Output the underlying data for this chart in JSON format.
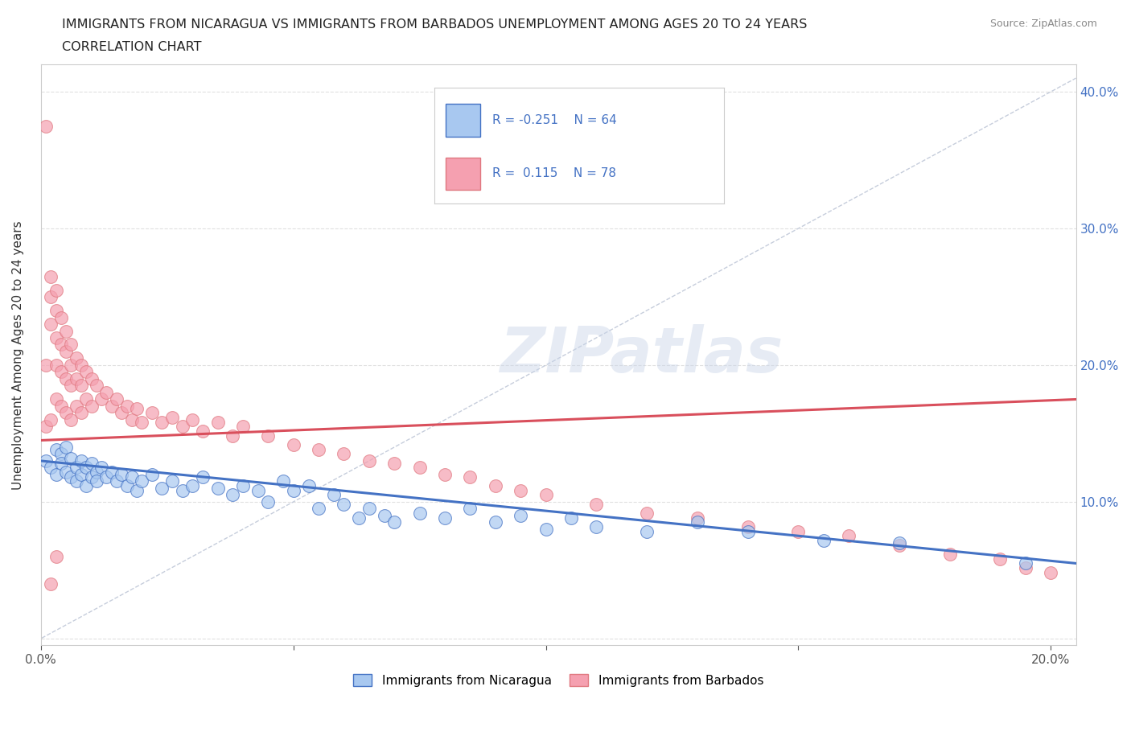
{
  "title_line1": "IMMIGRANTS FROM NICARAGUA VS IMMIGRANTS FROM BARBADOS UNEMPLOYMENT AMONG AGES 20 TO 24 YEARS",
  "title_line2": "CORRELATION CHART",
  "source_text": "Source: ZipAtlas.com",
  "ylabel": "Unemployment Among Ages 20 to 24 years",
  "xlim": [
    0.0,
    0.205
  ],
  "ylim": [
    -0.005,
    0.42
  ],
  "color_nicaragua": "#a8c8f0",
  "color_barbados": "#f5a0b0",
  "color_trend_nicaragua": "#4472c4",
  "color_trend_barbados": "#d94f5c",
  "color_diagonal": "#c0c8d8",
  "legend_label1": "Immigrants from Nicaragua",
  "legend_label2": "Immigrants from Barbados",
  "watermark": "ZIPatlas",
  "nicaragua_x": [
    0.001,
    0.002,
    0.003,
    0.003,
    0.004,
    0.004,
    0.005,
    0.005,
    0.006,
    0.006,
    0.007,
    0.007,
    0.008,
    0.008,
    0.009,
    0.009,
    0.01,
    0.01,
    0.011,
    0.011,
    0.012,
    0.013,
    0.014,
    0.015,
    0.016,
    0.017,
    0.018,
    0.019,
    0.02,
    0.022,
    0.024,
    0.026,
    0.028,
    0.03,
    0.032,
    0.035,
    0.038,
    0.04,
    0.043,
    0.045,
    0.048,
    0.05,
    0.053,
    0.055,
    0.058,
    0.06,
    0.063,
    0.065,
    0.068,
    0.07,
    0.075,
    0.08,
    0.085,
    0.09,
    0.095,
    0.1,
    0.105,
    0.11,
    0.12,
    0.13,
    0.14,
    0.155,
    0.17,
    0.195
  ],
  "nicaragua_y": [
    0.13,
    0.125,
    0.138,
    0.12,
    0.135,
    0.128,
    0.14,
    0.122,
    0.132,
    0.118,
    0.125,
    0.115,
    0.13,
    0.12,
    0.125,
    0.112,
    0.118,
    0.128,
    0.122,
    0.115,
    0.125,
    0.118,
    0.122,
    0.115,
    0.12,
    0.112,
    0.118,
    0.108,
    0.115,
    0.12,
    0.11,
    0.115,
    0.108,
    0.112,
    0.118,
    0.11,
    0.105,
    0.112,
    0.108,
    0.1,
    0.115,
    0.108,
    0.112,
    0.095,
    0.105,
    0.098,
    0.088,
    0.095,
    0.09,
    0.085,
    0.092,
    0.088,
    0.095,
    0.085,
    0.09,
    0.08,
    0.088,
    0.082,
    0.078,
    0.085,
    0.078,
    0.072,
    0.07,
    0.055
  ],
  "barbados_x": [
    0.001,
    0.001,
    0.001,
    0.002,
    0.002,
    0.002,
    0.002,
    0.003,
    0.003,
    0.003,
    0.003,
    0.003,
    0.004,
    0.004,
    0.004,
    0.004,
    0.005,
    0.005,
    0.005,
    0.005,
    0.006,
    0.006,
    0.006,
    0.006,
    0.007,
    0.007,
    0.007,
    0.008,
    0.008,
    0.008,
    0.009,
    0.009,
    0.01,
    0.01,
    0.011,
    0.012,
    0.013,
    0.014,
    0.015,
    0.016,
    0.017,
    0.018,
    0.019,
    0.02,
    0.022,
    0.024,
    0.026,
    0.028,
    0.03,
    0.032,
    0.035,
    0.038,
    0.04,
    0.045,
    0.05,
    0.055,
    0.06,
    0.065,
    0.07,
    0.075,
    0.08,
    0.085,
    0.09,
    0.095,
    0.1,
    0.11,
    0.12,
    0.13,
    0.14,
    0.15,
    0.16,
    0.17,
    0.18,
    0.19,
    0.195,
    0.2,
    0.002,
    0.003
  ],
  "barbados_y": [
    0.375,
    0.2,
    0.155,
    0.265,
    0.25,
    0.23,
    0.16,
    0.255,
    0.24,
    0.22,
    0.2,
    0.175,
    0.235,
    0.215,
    0.195,
    0.17,
    0.225,
    0.21,
    0.19,
    0.165,
    0.215,
    0.2,
    0.185,
    0.16,
    0.205,
    0.19,
    0.17,
    0.2,
    0.185,
    0.165,
    0.195,
    0.175,
    0.19,
    0.17,
    0.185,
    0.175,
    0.18,
    0.17,
    0.175,
    0.165,
    0.17,
    0.16,
    0.168,
    0.158,
    0.165,
    0.158,
    0.162,
    0.155,
    0.16,
    0.152,
    0.158,
    0.148,
    0.155,
    0.148,
    0.142,
    0.138,
    0.135,
    0.13,
    0.128,
    0.125,
    0.12,
    0.118,
    0.112,
    0.108,
    0.105,
    0.098,
    0.092,
    0.088,
    0.082,
    0.078,
    0.075,
    0.068,
    0.062,
    0.058,
    0.052,
    0.048,
    0.04,
    0.06
  ],
  "nic_trend_x0": 0.0,
  "nic_trend_x1": 0.205,
  "nic_trend_y0": 0.13,
  "nic_trend_y1": 0.055,
  "barb_trend_x0": 0.0,
  "barb_trend_x1": 0.205,
  "barb_trend_y0": 0.145,
  "barb_trend_y1": 0.175
}
